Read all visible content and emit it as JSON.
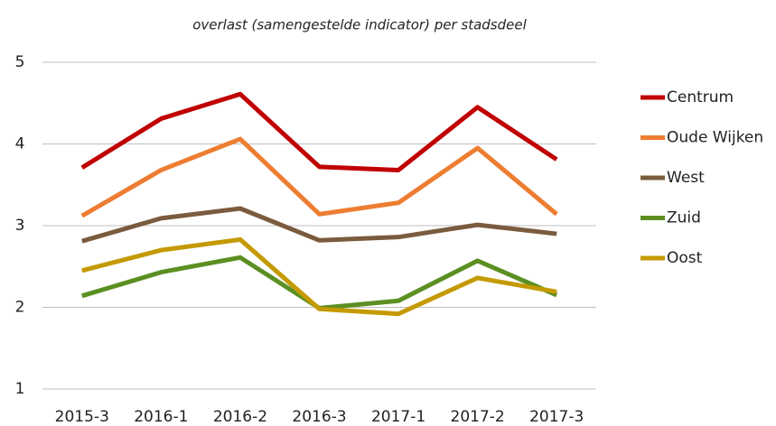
{
  "chart_data": {
    "type": "line",
    "title": "overlast (samengestelde indicator) per stadsdeel",
    "categories": [
      "2015-3",
      "2016-1",
      "2016-2",
      "2016-3",
      "2017-1",
      "2017-2",
      "2017-3"
    ],
    "series": [
      {
        "name": "Centrum",
        "color": "#c00000",
        "values": [
          3.71,
          4.31,
          4.61,
          3.72,
          3.68,
          4.45,
          3.81
        ]
      },
      {
        "name": "Oude Wijken",
        "color": "#ed7d31",
        "values": [
          3.12,
          3.68,
          4.06,
          3.14,
          3.28,
          3.95,
          3.14
        ]
      },
      {
        "name": "West",
        "color": "#7b5b3e",
        "values": [
          2.81,
          3.09,
          3.21,
          2.82,
          2.86,
          3.01,
          2.9
        ]
      },
      {
        "name": "Zuid",
        "color": "#5b8f22",
        "values": [
          2.14,
          2.43,
          2.61,
          1.99,
          2.08,
          2.57,
          2.15
        ]
      },
      {
        "name": "Oost",
        "color": "#c49a00",
        "values": [
          2.45,
          2.7,
          2.83,
          1.98,
          1.92,
          2.36,
          2.19
        ]
      }
    ],
    "ylim": [
      1,
      5
    ],
    "yticks": [
      1,
      2,
      3,
      4,
      5
    ],
    "grid": true,
    "legend": "right"
  }
}
